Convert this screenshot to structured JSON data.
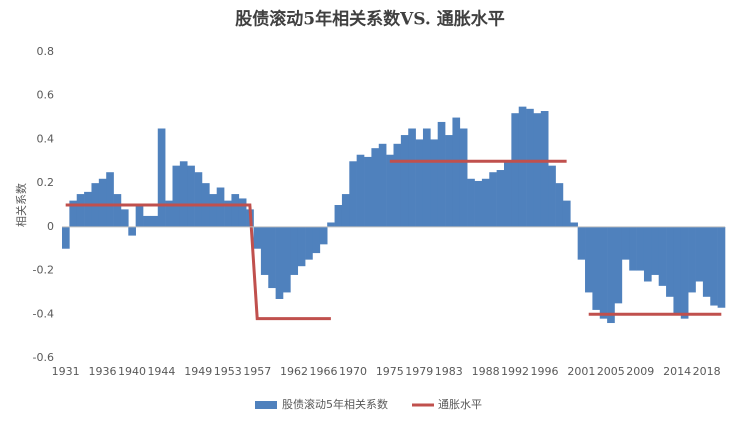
{
  "chart_data": {
    "type": "bar",
    "title": "股债滚动5年相关系数VS. 通胀水平",
    "y_label": "相关系数",
    "categories": [
      "1931",
      null,
      null,
      null,
      null,
      "1936",
      null,
      null,
      null,
      "1940",
      null,
      null,
      null,
      "1944",
      null,
      null,
      null,
      null,
      "1949",
      null,
      null,
      null,
      "1953",
      null,
      null,
      null,
      "1957",
      null,
      null,
      null,
      null,
      "1962",
      null,
      null,
      null,
      "1966",
      null,
      null,
      null,
      "1970",
      null,
      null,
      null,
      null,
      "1975",
      null,
      null,
      null,
      "1979",
      null,
      null,
      null,
      "1983",
      null,
      null,
      null,
      null,
      "1988",
      null,
      null,
      null,
      "1992",
      null,
      null,
      null,
      "1996",
      null,
      null,
      null,
      null,
      "2001",
      null,
      null,
      null,
      "2005",
      null,
      null,
      null,
      "2009",
      null,
      null,
      null,
      null,
      "2014",
      null,
      null,
      null,
      "2018",
      null,
      null
    ],
    "series": [
      {
        "name": "股债滚动5年相关系数",
        "type": "bar",
        "color": "#4f81bd",
        "values": [
          -0.1,
          0.12,
          0.15,
          0.16,
          0.2,
          0.22,
          0.25,
          0.15,
          0.08,
          -0.04,
          0.1,
          0.05,
          0.05,
          0.45,
          0.12,
          0.28,
          0.3,
          0.28,
          0.25,
          0.2,
          0.15,
          0.18,
          0.12,
          0.15,
          0.13,
          0.08,
          -0.1,
          -0.22,
          -0.28,
          -0.33,
          -0.3,
          -0.22,
          -0.18,
          -0.15,
          -0.12,
          -0.08,
          0.02,
          0.1,
          0.15,
          0.3,
          0.33,
          0.32,
          0.36,
          0.38,
          0.33,
          0.38,
          0.42,
          0.45,
          0.4,
          0.45,
          0.4,
          0.48,
          0.42,
          0.5,
          0.45,
          0.22,
          0.21,
          0.22,
          0.25,
          0.26,
          0.3,
          0.52,
          0.55,
          0.54,
          0.52,
          0.53,
          0.28,
          0.2,
          0.12,
          0.02,
          -0.15,
          -0.3,
          -0.38,
          -0.42,
          -0.44,
          -0.35,
          -0.15,
          -0.2,
          -0.2,
          -0.25,
          -0.22,
          -0.27,
          -0.32,
          -0.4,
          -0.42,
          -0.3,
          -0.25,
          -0.32,
          -0.36,
          -0.37
        ]
      },
      {
        "name": "通胀水平",
        "type": "line",
        "color": "#c0504d",
        "values": [
          0.1,
          0.1,
          0.1,
          0.1,
          0.1,
          0.1,
          0.1,
          0.1,
          0.1,
          0.1,
          0.1,
          0.1,
          0.1,
          0.1,
          0.1,
          0.1,
          0.1,
          0.1,
          0.1,
          0.1,
          0.1,
          0.1,
          0.1,
          0.1,
          0.1,
          0.1,
          -0.42,
          -0.42,
          -0.42,
          -0.42,
          -0.42,
          -0.42,
          -0.42,
          -0.42,
          -0.42,
          -0.42,
          -0.42,
          null,
          null,
          null,
          null,
          null,
          null,
          null,
          0.3,
          0.3,
          0.3,
          0.3,
          0.3,
          0.3,
          0.3,
          0.3,
          0.3,
          0.3,
          0.3,
          0.3,
          0.3,
          0.3,
          0.3,
          0.3,
          0.3,
          0.3,
          0.3,
          0.3,
          0.3,
          0.3,
          0.3,
          0.3,
          0.3,
          null,
          null,
          -0.4,
          -0.4,
          -0.4,
          -0.4,
          -0.4,
          -0.4,
          -0.4,
          -0.4,
          -0.4,
          -0.4,
          -0.4,
          -0.4,
          -0.4,
          -0.4,
          -0.4,
          -0.4,
          -0.4,
          -0.4,
          -0.4
        ]
      }
    ],
    "ylim": [
      -0.6,
      0.8
    ],
    "yticks": [
      -0.6,
      -0.4,
      -0.2,
      0,
      0.2,
      0.4,
      0.6,
      0.8
    ],
    "grid": false,
    "legend": "bottom"
  }
}
